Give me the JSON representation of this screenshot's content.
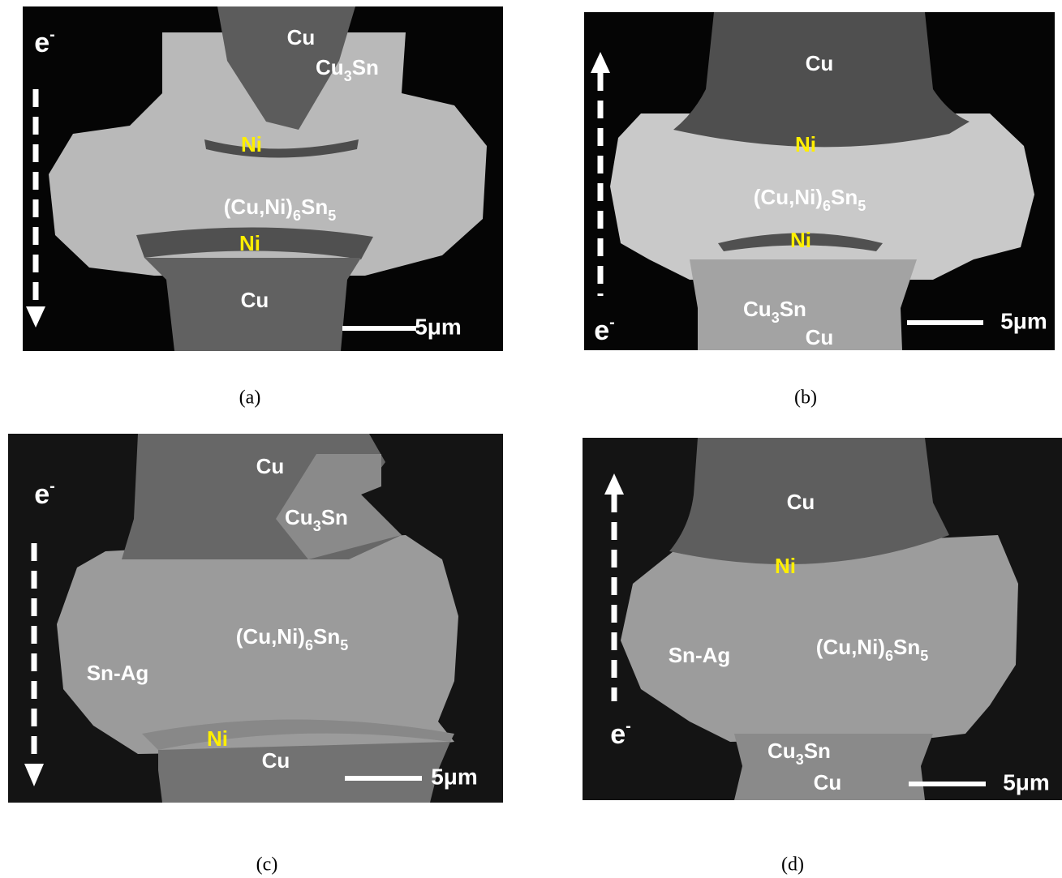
{
  "panels": [
    {
      "caption": "(a)",
      "electron": {
        "base": "e",
        "sup": "-"
      },
      "scale_bar": "5μm",
      "labels": [
        {
          "parts": [
            "Cu"
          ]
        },
        {
          "parts": [
            "Cu",
            "3",
            "Sn"
          ]
        },
        {
          "parts": [
            "Ni"
          ]
        },
        {
          "parts": [
            "(Cu,Ni)",
            "6",
            "Sn",
            "5"
          ]
        },
        {
          "parts": [
            "Ni"
          ]
        },
        {
          "parts": [
            "Cu"
          ]
        }
      ]
    },
    {
      "caption": "(b)",
      "electron": {
        "base": "e",
        "sup": "-"
      },
      "scale_bar": "5μm",
      "labels": [
        {
          "parts": [
            "Cu"
          ]
        },
        {
          "parts": [
            "Ni"
          ]
        },
        {
          "parts": [
            "(Cu,Ni)",
            "6",
            "Sn",
            "5"
          ]
        },
        {
          "parts": [
            "Ni"
          ]
        },
        {
          "parts": [
            "Cu",
            "3",
            "Sn"
          ]
        },
        {
          "parts": [
            "Cu"
          ]
        }
      ]
    },
    {
      "caption": "(c)",
      "electron": {
        "base": "e",
        "sup": "-"
      },
      "scale_bar": "5μm",
      "labels": [
        {
          "parts": [
            "Cu"
          ]
        },
        {
          "parts": [
            "Cu",
            "3",
            "Sn"
          ]
        },
        {
          "parts": [
            "(Cu,Ni)",
            "6",
            "Sn",
            "5"
          ]
        },
        {
          "parts": [
            "Sn-Ag"
          ]
        },
        {
          "parts": [
            "Ni"
          ]
        },
        {
          "parts": [
            "Cu"
          ]
        }
      ]
    },
    {
      "caption": "(d)",
      "electron": {
        "base": "e",
        "sup": "-"
      },
      "scale_bar": "5μm",
      "labels": [
        {
          "parts": [
            "Cu"
          ]
        },
        {
          "parts": [
            "Ni"
          ]
        },
        {
          "parts": [
            "Sn-Ag"
          ]
        },
        {
          "parts": [
            "(Cu,Ni)",
            "6",
            "Sn",
            "5"
          ]
        },
        {
          "parts": [
            "Cu",
            "3",
            "Sn"
          ]
        },
        {
          "parts": [
            "Cu"
          ]
        }
      ]
    }
  ]
}
